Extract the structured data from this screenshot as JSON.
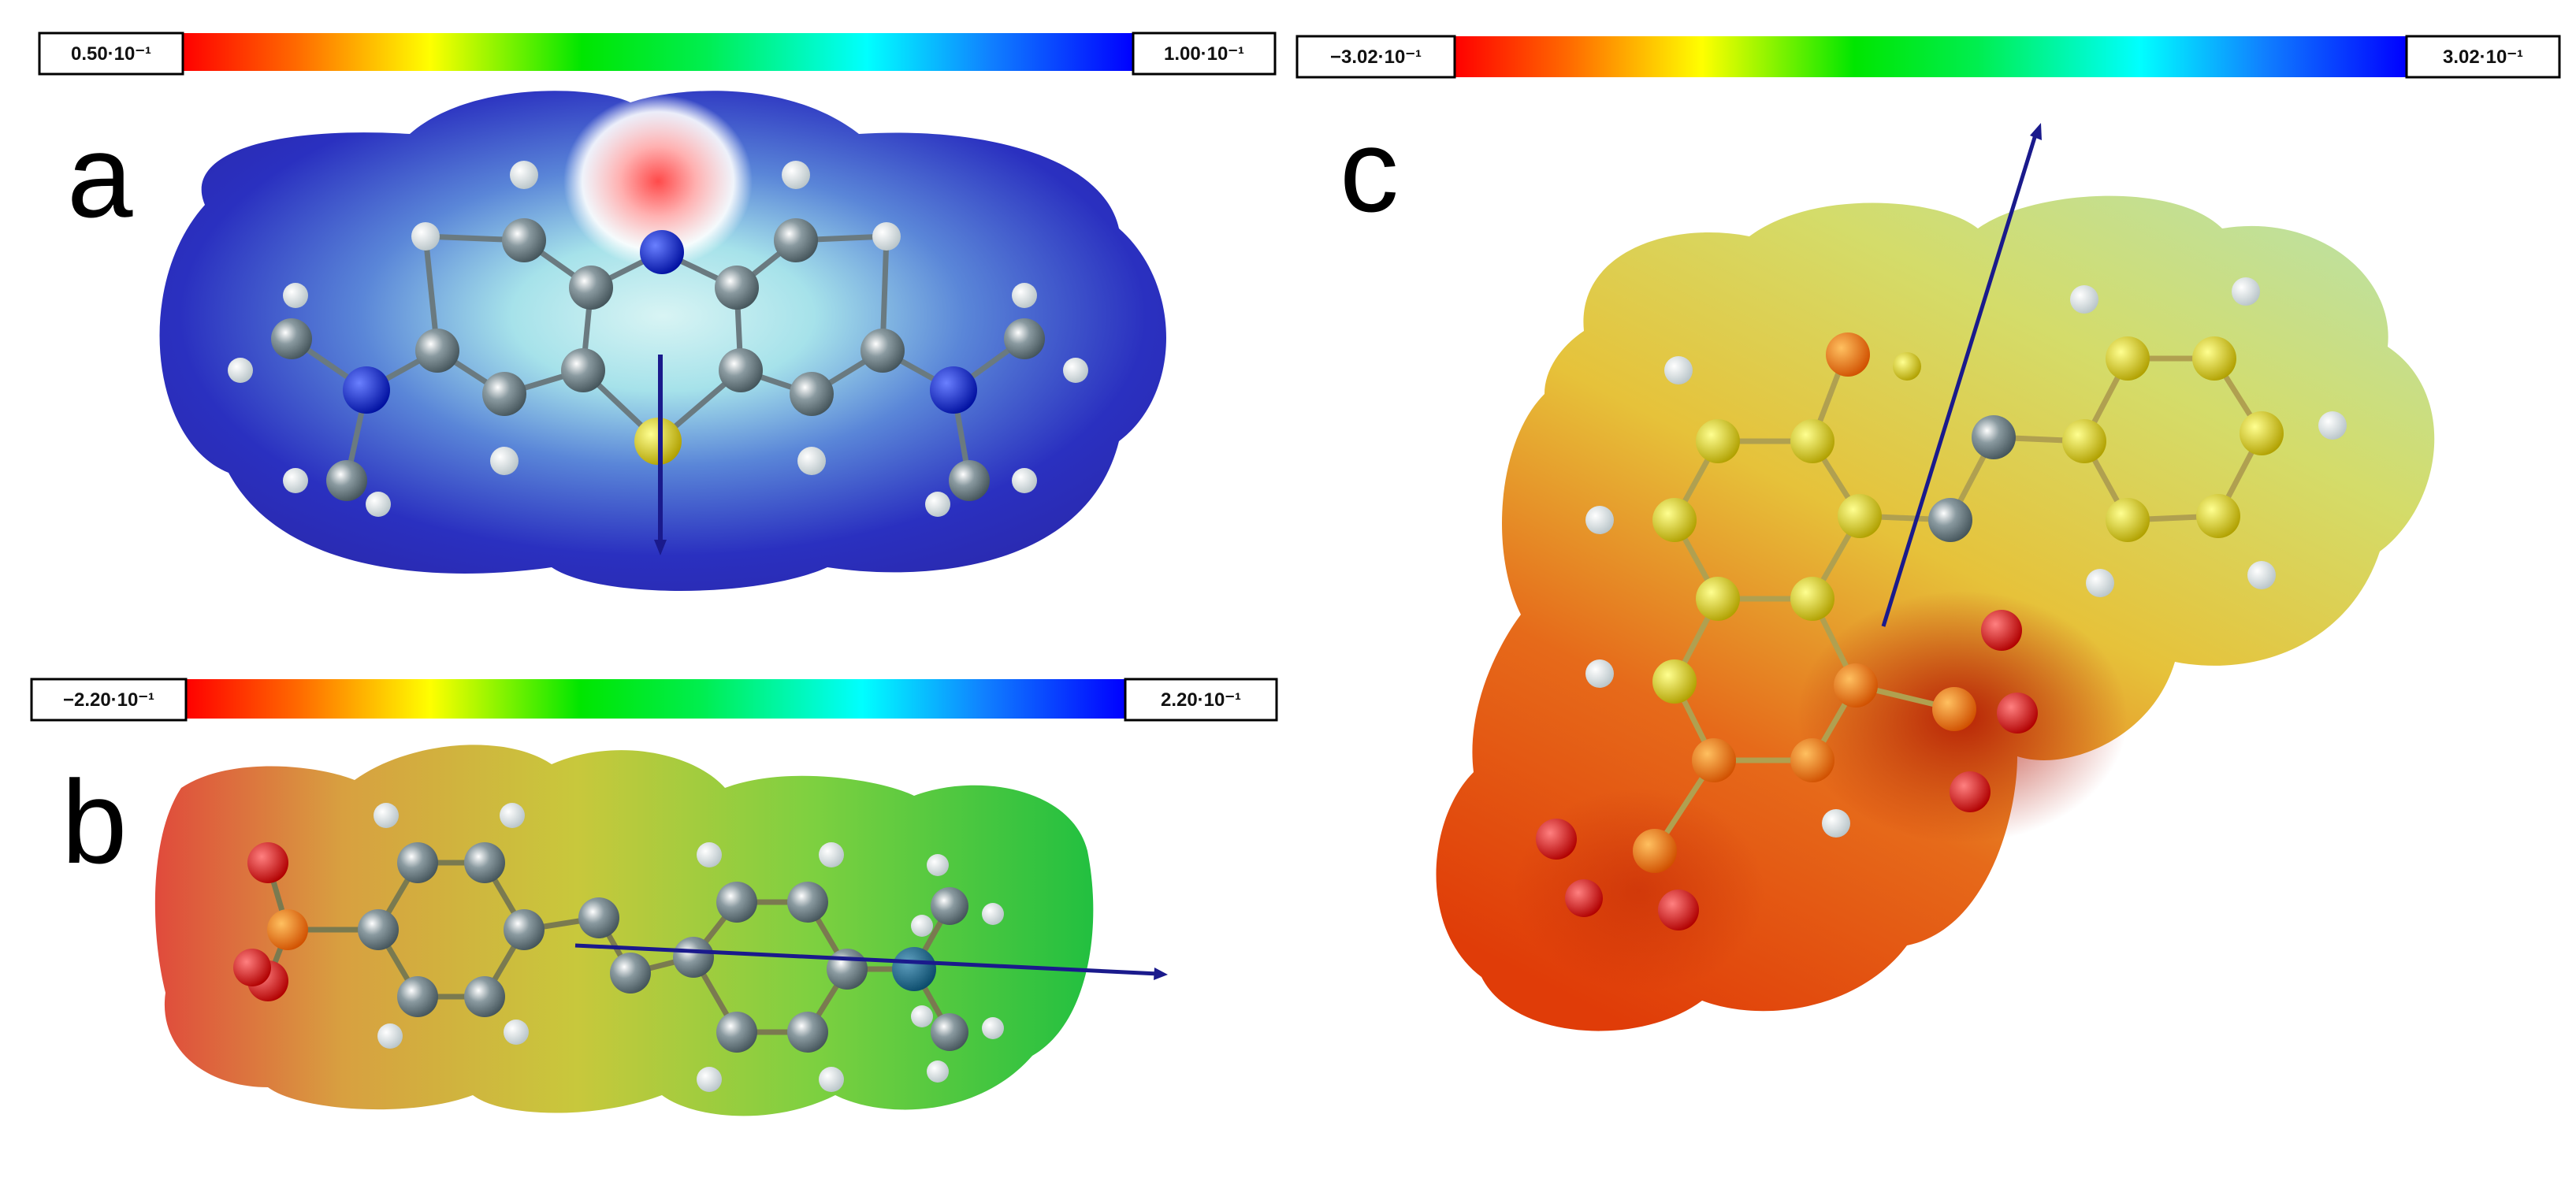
{
  "panels": [
    {
      "letter": "a",
      "scale_min": "0.50·10⁻¹",
      "scale_max": "1.00·10⁻¹"
    },
    {
      "letter": "b",
      "scale_min": "−2.20·10⁻¹",
      "scale_max": "2.20·10⁻¹"
    },
    {
      "letter": "c",
      "scale_min": "−3.02·10⁻¹",
      "scale_max": "3.02·10⁻¹"
    }
  ],
  "colors": {
    "scale_gradient": [
      "#ff0000",
      "#ff8000",
      "#ffff00",
      "#00ff00",
      "#00ffff",
      "#0040ff",
      "#0000ff"
    ],
    "arrow": "#1a1a8c",
    "surface_a": [
      "#3040c8",
      "#aee6e6",
      "#ffffff",
      "#ff6060"
    ],
    "surface_b": [
      "#e05040",
      "#c8c840",
      "#30c040"
    ],
    "surface_c": [
      "#e04010",
      "#e0c040",
      "#c8e080"
    ]
  }
}
